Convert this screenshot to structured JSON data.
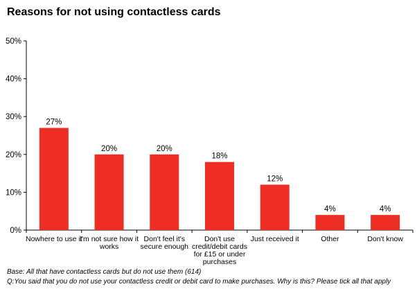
{
  "chart_data": {
    "type": "bar",
    "title": "Reasons for not using contactless cards",
    "categories": [
      [
        "Nowhere to use it"
      ],
      [
        "I'm not sure how it",
        "works"
      ],
      [
        "Don't feel it's",
        "secure enough"
      ],
      [
        "Don't use",
        "credit/debit cards",
        "for £15 or under",
        "purchases"
      ],
      [
        "Just received it"
      ],
      [
        "Other"
      ],
      [
        "Don't know"
      ]
    ],
    "values": [
      27,
      20,
      20,
      18,
      12,
      4,
      4
    ],
    "data_labels": [
      "27%",
      "20%",
      "20%",
      "18%",
      "12%",
      "4%",
      "4%"
    ],
    "ylim": [
      0,
      50
    ],
    "yticks": [
      "0%",
      "10%",
      "20%",
      "30%",
      "40%",
      "50%"
    ],
    "ytick_values": [
      0,
      10,
      20,
      30,
      40,
      50
    ],
    "bar_color": "#ee2d24",
    "grid": false,
    "legend": "none"
  },
  "footnotes": {
    "base": "Base: All that have contactless cards but do not use them (614)",
    "question": "Q:You said that you do not use your contactless credit or debit card to make purchases. Why is this? Please tick all that apply"
  }
}
